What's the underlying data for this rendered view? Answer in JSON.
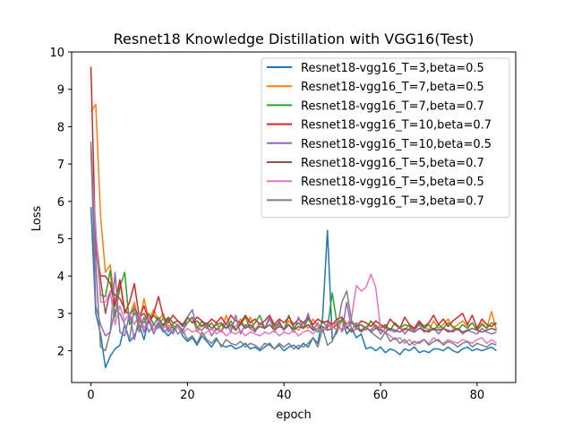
{
  "chart_data": {
    "type": "line",
    "title": "Resnet18 Knowledge Distillation with VGG16(Test)",
    "xlabel": "epoch",
    "ylabel": "Loss",
    "xlim": [
      -4,
      88
    ],
    "ylim": [
      1.15,
      10.0
    ],
    "xticks": [
      0,
      20,
      40,
      60,
      80
    ],
    "yticks": [
      2,
      3,
      4,
      5,
      6,
      7,
      8,
      9,
      10
    ],
    "grid": false,
    "legend_position": "top-right",
    "series": [
      {
        "name": "Resnet18-vgg16_T=3,beta=0.5",
        "color": "#1f77b4",
        "values": [
          5.85,
          3.0,
          2.45,
          1.55,
          1.85,
          2.05,
          2.15,
          2.7,
          2.25,
          2.4,
          2.7,
          2.3,
          2.9,
          2.55,
          2.75,
          2.55,
          2.4,
          2.55,
          2.65,
          2.4,
          2.25,
          2.35,
          2.15,
          2.4,
          2.25,
          2.1,
          2.3,
          2.15,
          2.1,
          2.15,
          2.05,
          2.1,
          2.2,
          2.05,
          2.1,
          2.0,
          2.1,
          2.2,
          2.05,
          2.15,
          2.0,
          2.1,
          2.15,
          2.05,
          2.2,
          2.1,
          2.35,
          2.2,
          2.9,
          5.22,
          2.3,
          2.5,
          2.85,
          2.45,
          2.6,
          2.35,
          2.45,
          2.05,
          2.1,
          2.0,
          2.1,
          1.95,
          2.05,
          2.0,
          1.9,
          2.05,
          2.0,
          2.1,
          1.95,
          2.0,
          1.95,
          2.05,
          2.05,
          2.0,
          2.1,
          2.0,
          1.95,
          2.05,
          2.1,
          2.0,
          2.05,
          2.0,
          2.05,
          2.1,
          2.0
        ]
      },
      {
        "name": "Resnet18-vgg16_T=7,beta=0.5",
        "color": "#ff7f0e",
        "values": [
          8.4,
          8.6,
          5.6,
          4.1,
          4.3,
          3.3,
          3.9,
          3.1,
          2.95,
          3.3,
          2.7,
          3.4,
          2.85,
          3.1,
          2.8,
          3.0,
          2.6,
          2.75,
          2.7,
          2.55,
          2.75,
          2.9,
          2.5,
          2.7,
          2.6,
          2.55,
          2.75,
          2.5,
          2.95,
          2.6,
          2.65,
          2.85,
          2.6,
          2.9,
          2.55,
          2.75,
          2.6,
          2.9,
          2.6,
          2.7,
          2.55,
          2.8,
          2.65,
          2.55,
          2.75,
          2.6,
          2.85,
          2.65,
          2.5,
          2.75,
          2.65,
          2.55,
          2.8,
          2.6,
          2.75,
          2.6,
          2.7,
          2.55,
          2.8,
          2.6,
          2.7,
          2.65,
          2.55,
          2.75,
          2.6,
          2.55,
          2.7,
          2.6,
          2.75,
          2.65,
          2.55,
          2.8,
          2.6,
          2.7,
          2.85,
          2.6,
          2.7,
          2.8,
          2.65,
          2.75,
          2.55,
          2.75,
          2.6,
          3.05,
          2.55
        ]
      },
      {
        "name": "Resnet18-vgg16_T=7,beta=0.7",
        "color": "#2ca02c",
        "values": [
          7.3,
          4.8,
          3.5,
          3.45,
          4.15,
          2.9,
          3.7,
          4.1,
          2.7,
          3.0,
          2.9,
          2.75,
          3.0,
          2.7,
          2.9,
          2.65,
          2.85,
          2.6,
          2.7,
          2.55,
          2.75,
          2.9,
          2.6,
          2.8,
          2.6,
          2.75,
          2.55,
          2.7,
          2.6,
          2.8,
          2.55,
          2.7,
          2.9,
          2.6,
          2.75,
          2.95,
          2.6,
          2.85,
          2.65,
          2.75,
          2.55,
          2.95,
          2.6,
          2.75,
          2.6,
          2.85,
          2.65,
          2.5,
          2.8,
          2.6,
          3.55,
          2.7,
          2.85,
          2.6,
          2.75,
          2.65,
          2.7,
          2.6,
          2.8,
          2.65,
          2.6,
          2.7,
          2.55,
          2.75,
          2.6,
          2.7,
          2.65,
          2.55,
          2.75,
          2.6,
          2.7,
          2.55,
          2.7,
          2.6,
          2.75,
          2.65,
          2.55,
          2.7,
          2.6,
          2.75,
          2.55,
          2.7,
          2.6,
          2.75,
          2.7
        ]
      },
      {
        "name": "Resnet18-vgg16_T=10,beta=0.7",
        "color": "#d62728",
        "values": [
          9.6,
          4.7,
          4.0,
          4.0,
          3.8,
          3.2,
          3.9,
          3.0,
          3.3,
          3.8,
          2.9,
          3.2,
          2.8,
          3.0,
          3.45,
          2.9,
          2.75,
          2.95,
          2.8,
          2.7,
          2.9,
          2.75,
          2.9,
          2.8,
          2.7,
          2.85,
          2.75,
          2.9,
          2.7,
          2.95,
          2.8,
          2.75,
          2.95,
          2.75,
          2.85,
          2.7,
          2.8,
          2.95,
          2.7,
          2.85,
          2.75,
          2.9,
          2.7,
          2.85,
          2.75,
          2.9,
          2.7,
          2.85,
          2.75,
          2.8,
          2.7,
          2.85,
          2.9,
          2.7,
          2.8,
          2.65,
          2.8,
          2.75,
          2.65,
          2.8,
          2.7,
          2.6,
          2.85,
          2.7,
          2.6,
          2.9,
          2.7,
          2.6,
          2.8,
          2.65,
          2.75,
          2.95,
          2.7,
          2.85,
          2.65,
          2.8,
          2.9,
          3.0,
          2.7,
          2.95,
          2.6,
          2.85,
          2.7,
          2.65,
          2.75
        ]
      },
      {
        "name": "Resnet18-vgg16_T=10,beta=0.5",
        "color": "#9467bd",
        "values": [
          7.5,
          3.2,
          2.7,
          2.4,
          2.5,
          4.1,
          2.5,
          2.4,
          3.0,
          2.3,
          2.9,
          2.5,
          2.8,
          2.45,
          2.7,
          2.5,
          2.6,
          2.45,
          2.7,
          2.5,
          2.9,
          3.1,
          2.6,
          2.55,
          2.7,
          2.4,
          2.6,
          2.5,
          2.75,
          2.5,
          2.95,
          2.45,
          2.7,
          2.6,
          2.5,
          2.75,
          2.6,
          2.9,
          2.5,
          2.8,
          2.55,
          2.7,
          2.5,
          2.9,
          2.6,
          3.0,
          2.55,
          2.75,
          2.5,
          2.7,
          2.6,
          2.8,
          2.5,
          3.3,
          2.55,
          2.75,
          2.5,
          2.6,
          2.55,
          2.7,
          2.45,
          2.6,
          2.55,
          2.5,
          2.65,
          2.45,
          2.6,
          2.55,
          2.7,
          2.5,
          2.55,
          2.6,
          2.45,
          2.6,
          2.55,
          2.5,
          2.6,
          2.45,
          2.55,
          2.5,
          2.45,
          2.6,
          2.5,
          2.45,
          2.5
        ]
      },
      {
        "name": "Resnet18-vgg16_T=5,beta=0.7",
        "color": "#8c564b",
        "values": [
          7.4,
          5.1,
          3.9,
          3.0,
          3.6,
          3.5,
          3.4,
          3.1,
          2.95,
          3.15,
          2.9,
          3.0,
          2.75,
          2.95,
          2.8,
          2.7,
          2.9,
          2.75,
          2.8,
          2.65,
          2.9,
          2.75,
          2.8,
          2.65,
          2.75,
          2.6,
          2.7,
          2.75,
          2.6,
          2.7,
          2.55,
          2.75,
          2.6,
          2.7,
          2.55,
          2.65,
          2.6,
          2.7,
          2.55,
          2.65,
          2.6,
          2.7,
          2.55,
          2.65,
          2.6,
          2.7,
          2.55,
          2.6,
          2.65,
          2.55,
          2.6,
          2.7,
          2.55,
          2.65,
          2.5,
          2.6,
          2.55,
          2.65,
          2.5,
          2.6,
          2.55,
          2.5,
          2.6,
          2.55,
          2.5,
          2.6,
          2.55,
          2.5,
          2.6,
          2.55,
          2.5,
          2.6,
          2.55,
          2.6,
          2.5,
          2.55,
          2.6,
          2.5,
          2.55,
          2.6,
          2.55,
          2.5,
          2.55,
          2.6,
          2.55
        ]
      },
      {
        "name": "Resnet18-vgg16_T=5,beta=0.5",
        "color": "#e377c2",
        "values": [
          7.3,
          5.3,
          3.3,
          3.3,
          3.6,
          2.7,
          3.2,
          2.8,
          3.0,
          2.7,
          3.0,
          2.6,
          2.9,
          2.55,
          2.8,
          2.6,
          2.7,
          2.5,
          2.65,
          2.45,
          2.6,
          2.5,
          2.55,
          2.4,
          2.5,
          2.6,
          2.45,
          2.55,
          2.4,
          2.5,
          2.45,
          2.55,
          2.4,
          2.5,
          2.45,
          2.4,
          2.5,
          2.45,
          2.55,
          2.4,
          2.5,
          2.45,
          2.55,
          2.4,
          2.5,
          2.55,
          2.45,
          2.6,
          2.5,
          2.75,
          2.6,
          2.8,
          2.5,
          2.7,
          2.9,
          3.75,
          3.6,
          3.7,
          4.05,
          3.7,
          2.6,
          2.5,
          2.4,
          2.3,
          2.35,
          2.2,
          2.3,
          2.15,
          2.25,
          2.3,
          2.2,
          2.35,
          2.25,
          2.2,
          2.3,
          2.25,
          2.2,
          2.3,
          2.25,
          2.2,
          2.3,
          2.35,
          2.2,
          2.3,
          2.2
        ]
      },
      {
        "name": "Resnet18-vgg16_T=3,beta=0.7",
        "color": "#7f7f7f",
        "values": [
          7.6,
          4.3,
          2.1,
          2.0,
          2.5,
          3.1,
          3.0,
          2.7,
          2.3,
          3.2,
          2.5,
          2.9,
          2.5,
          2.7,
          2.6,
          2.9,
          2.5,
          2.7,
          2.45,
          2.55,
          2.3,
          2.4,
          2.2,
          2.5,
          2.3,
          2.2,
          2.35,
          2.1,
          2.3,
          2.2,
          2.15,
          2.25,
          2.1,
          2.2,
          2.15,
          2.05,
          2.2,
          2.15,
          2.05,
          2.2,
          2.1,
          2.2,
          2.05,
          2.15,
          2.1,
          2.2,
          2.35,
          2.1,
          2.6,
          2.15,
          2.25,
          2.6,
          3.3,
          3.6,
          2.8,
          2.6,
          2.5,
          2.65,
          2.5,
          2.4,
          2.3,
          2.5,
          2.25,
          2.35,
          2.2,
          2.3,
          2.15,
          2.25,
          2.2,
          2.3,
          2.15,
          2.25,
          2.3,
          2.15,
          2.25,
          2.2,
          2.1,
          2.2,
          2.25,
          2.1,
          2.2,
          2.15,
          2.1,
          2.2,
          2.15
        ]
      }
    ]
  }
}
